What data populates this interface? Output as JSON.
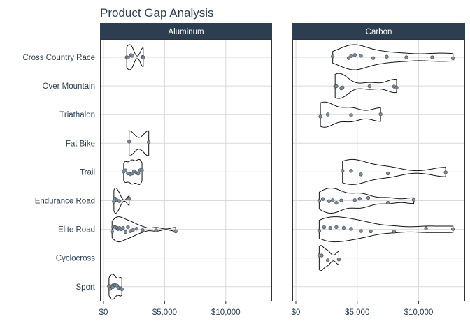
{
  "chart_data": {
    "type": "violin",
    "title": "Product Gap Analysis",
    "xlabel": "",
    "ylabel": "",
    "x_ticks": [
      0,
      5000,
      10000
    ],
    "x_tick_labels": [
      "$0",
      "$5,000",
      "$10,000"
    ],
    "xlim": [
      0,
      13500
    ],
    "categories": [
      "Cross Country Race",
      "Over Mountain",
      "Triathalon",
      "Fat Bike",
      "Trail",
      "Endurance Road",
      "Elite Road",
      "Cyclocross",
      "Sport"
    ],
    "panels": [
      {
        "name": "Aluminum",
        "series": [
          {
            "category": "Cross Country Race",
            "values": [
              1900,
              2000,
              2250,
              2350,
              3200,
              3250
            ]
          },
          {
            "category": "Fat Bike",
            "values": [
              2100,
              3700
            ]
          },
          {
            "category": "Trail",
            "values": [
              1650,
              1800,
              2000,
              2200,
              2350,
              2500,
              2700,
              2850,
              3000,
              3150
            ]
          },
          {
            "category": "Endurance Road",
            "values": [
              850,
              950,
              1100,
              1300,
              2100
            ]
          },
          {
            "category": "Elite Road",
            "values": [
              700,
              800,
              950,
              1100,
              1200,
              1300,
              1450,
              1600,
              1800,
              2000,
              2200,
              2400,
              2700,
              3200,
              4300,
              5900
            ]
          },
          {
            "category": "Sport",
            "values": [
              450,
              550,
              650,
              750,
              850,
              950,
              1100,
              1250,
              1400,
              1500
            ]
          }
        ]
      },
      {
        "name": "Carbon",
        "series": [
          {
            "category": "Cross Country Race",
            "values": [
              3000,
              4300,
              4500,
              4800,
              5300,
              6300,
              7400,
              9000,
              11100,
              12800
            ]
          },
          {
            "category": "Over Mountain",
            "values": [
              3200,
              3300,
              3700,
              3800,
              6000,
              8000,
              8200
            ]
          },
          {
            "category": "Triathalon",
            "values": [
              2000,
              2600,
              4500,
              6900
            ]
          },
          {
            "category": "Trail",
            "values": [
              3800,
              4500,
              5300,
              7500,
              12200
            ]
          },
          {
            "category": "Endurance Road",
            "values": [
              1900,
              2200,
              2700,
              3000,
              3300,
              3700,
              4800,
              5200,
              5900,
              7500,
              9600
            ]
          },
          {
            "category": "Elite Road",
            "values": [
              1900,
              2300,
              2800,
              3300,
              3900,
              4500,
              5300,
              6100,
              8000,
              10600,
              12800
            ]
          },
          {
            "category": "Cyclocross",
            "values": [
              1900,
              2100,
              2600,
              3500
            ]
          }
        ]
      }
    ],
    "colors": {
      "strip": "#2c3e50",
      "strip_text": "#ffffff",
      "grid": "#d9d9d9",
      "panel_border": "#333333",
      "point_fill": "#7f8c9a",
      "point_stroke": "#3d4a57",
      "violin_stroke": "#111111",
      "title": "#2c3e50",
      "text": "#2c3e50"
    }
  }
}
